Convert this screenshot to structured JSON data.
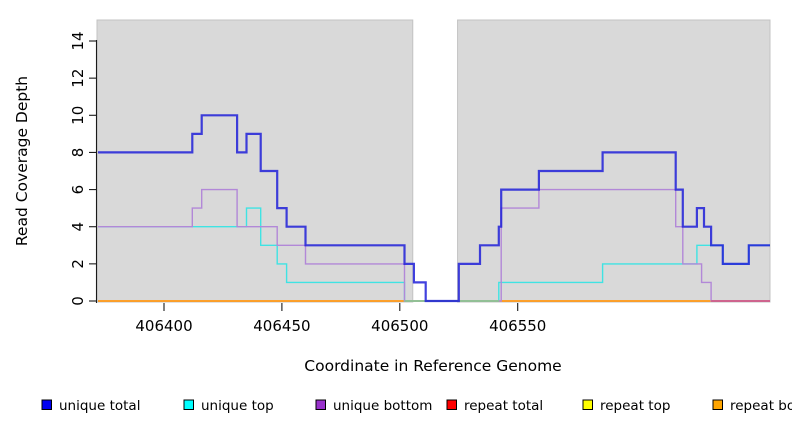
{
  "chart_data": {
    "type": "line",
    "subtype": "step",
    "title": "",
    "xlabel": "Coordinate in Reference Genome",
    "ylabel": "Read Coverage Depth",
    "x_domain": [
      406371.6,
      406657
    ],
    "ylim": [
      0,
      15.15
    ],
    "x_ticks": [
      406400,
      406450,
      406500,
      406550
    ],
    "y_ticks": [
      0,
      2,
      4,
      6,
      8,
      10,
      12,
      14
    ],
    "plot_background_color": "#d9d9d9",
    "plot_background_border_color": "#c3c3c3",
    "masked_gap_region": {
      "from": 406505.5,
      "to": 406524.5,
      "color": "#ffffff"
    },
    "series": [
      {
        "name": "repeat total",
        "color": "#e01010",
        "width": 1.2,
        "points": [
          [
            406372,
            0
          ],
          [
            406657,
            0
          ]
        ]
      },
      {
        "name": "repeat top",
        "color": "#ffff00",
        "width": 1.2,
        "points": [
          [
            406372,
            0
          ],
          [
            406657,
            0
          ]
        ]
      },
      {
        "name": "repeat bottom",
        "color": "#ff9c20",
        "width": 1.7,
        "points": [
          [
            406372,
            0
          ],
          [
            406657,
            0
          ]
        ]
      },
      {
        "name": "unique top",
        "color": "#3fe3e3",
        "width": 1.4,
        "points": [
          [
            406372,
            4
          ],
          [
            406435,
            5
          ],
          [
            406441,
            3
          ],
          [
            406448,
            2
          ],
          [
            406452,
            1
          ],
          [
            406502,
            0
          ],
          [
            406542,
            1
          ],
          [
            406586,
            2
          ],
          [
            406626,
            3
          ],
          [
            406637,
            2
          ],
          [
            406648,
            3
          ],
          [
            406657,
            3
          ]
        ]
      },
      {
        "name": "unique bottom",
        "color": "#b288d8",
        "width": 1.4,
        "points": [
          [
            406372,
            4
          ],
          [
            406412,
            5
          ],
          [
            406416,
            6
          ],
          [
            406431,
            4
          ],
          [
            406448,
            3
          ],
          [
            406460,
            2
          ],
          [
            406502,
            0
          ],
          [
            406543,
            5
          ],
          [
            406559,
            6
          ],
          [
            406617,
            4
          ],
          [
            406620,
            2
          ],
          [
            406628,
            1
          ],
          [
            406632,
            0
          ],
          [
            406657,
            0
          ]
        ]
      },
      {
        "name": "unique total",
        "color": "#2020d8",
        "width": 2.2,
        "opacity": 0.85,
        "points": [
          [
            406372,
            8
          ],
          [
            406412,
            9
          ],
          [
            406416,
            10
          ],
          [
            406431,
            8
          ],
          [
            406435,
            9
          ],
          [
            406441,
            7
          ],
          [
            406448,
            5
          ],
          [
            406452,
            4
          ],
          [
            406460,
            3
          ],
          [
            406502,
            2
          ],
          [
            406506,
            1
          ],
          [
            406511,
            0
          ],
          [
            406525,
            2
          ],
          [
            406534,
            3
          ],
          [
            406542,
            4
          ],
          [
            406543,
            6
          ],
          [
            406559,
            7
          ],
          [
            406586,
            8
          ],
          [
            406617,
            6
          ],
          [
            406620,
            4
          ],
          [
            406626,
            5
          ],
          [
            406629,
            4
          ],
          [
            406632,
            3
          ],
          [
            406637,
            2
          ],
          [
            406648,
            3
          ],
          [
            406657,
            3
          ]
        ]
      }
    ],
    "overlap_blend_segments": [
      {
        "name": "cyan-yellow-blend",
        "from": 406502,
        "to": 406542,
        "y": 0,
        "color": "#8cc88c",
        "width": 1.5
      },
      {
        "name": "purple-orange-blend",
        "from": 406632,
        "to": 406657,
        "y": 0,
        "color": "#cc5590",
        "width": 1.5
      }
    ],
    "legend": [
      {
        "label": "unique total",
        "color": "#0000f0"
      },
      {
        "label": "unique top",
        "color": "#00ffff"
      },
      {
        "label": "unique bottom",
        "color": "#9932cc"
      },
      {
        "label": "repeat total",
        "color": "#ff0000"
      },
      {
        "label": "repeat top",
        "color": "#ffff00"
      },
      {
        "label": "repeat bottom",
        "color": "#ffa500"
      }
    ]
  }
}
